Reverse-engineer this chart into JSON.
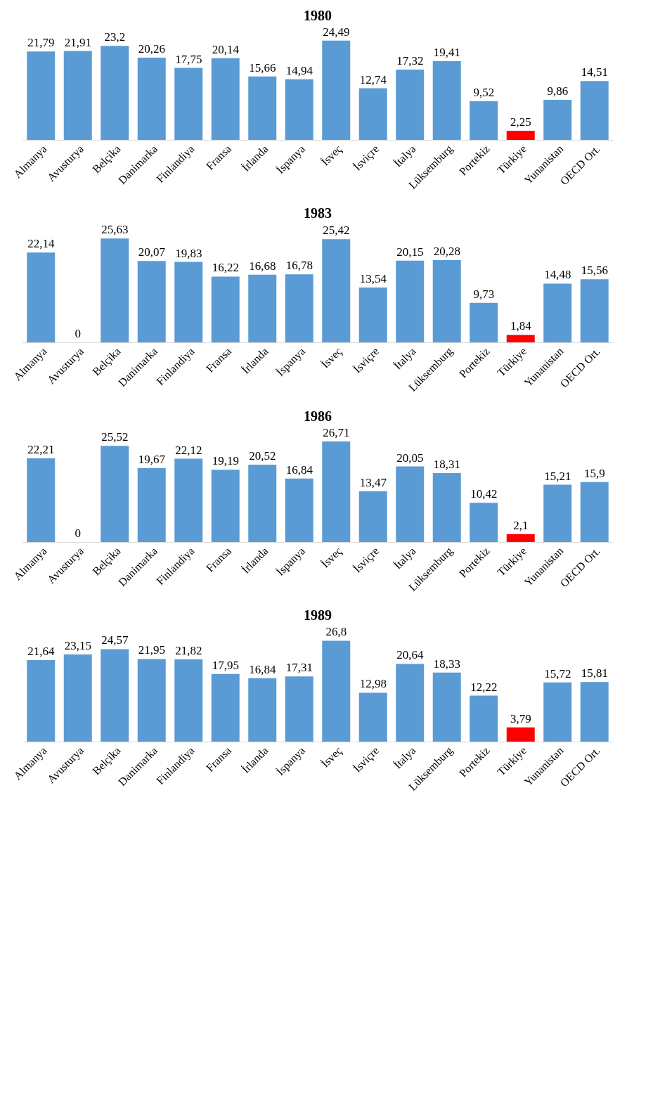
{
  "chart_data": [
    {
      "type": "bar",
      "title": "1980",
      "categories": [
        "Almanya",
        "Avusturya",
        "Belçika",
        "Danimarka",
        "Finlandiya",
        "Fransa",
        "İrlanda",
        "İspanya",
        "İsveç",
        "İsviçre",
        "İtalya",
        "Lüksemburg",
        "Portekiz",
        "Türkiye",
        "Yunanistan",
        "OECD Ort."
      ],
      "values": [
        21.79,
        21.91,
        23.2,
        20.26,
        17.75,
        20.14,
        15.66,
        14.94,
        24.49,
        12.74,
        17.32,
        19.41,
        9.52,
        2.25,
        9.86,
        14.51
      ],
      "value_labels": [
        "21,79",
        "21,91",
        "23,2",
        "20,26",
        "17,75",
        "20,14",
        "15,66",
        "14,94",
        "24,49",
        "12,74",
        "17,32",
        "19,41",
        "9,52",
        "2,25",
        "9,86",
        "14,51"
      ],
      "colors": [
        "#5b9bd5",
        "#5b9bd5",
        "#5b9bd5",
        "#5b9bd5",
        "#5b9bd5",
        "#5b9bd5",
        "#5b9bd5",
        "#5b9bd5",
        "#5b9bd5",
        "#5b9bd5",
        "#5b9bd5",
        "#5b9bd5",
        "#5b9bd5",
        "#ff0000",
        "#5b9bd5",
        "#5b9bd5"
      ],
      "tick_labels": "x"
    },
    {
      "type": "bar",
      "title": "1983",
      "categories": [
        "Almanya",
        "Avusturya",
        "Belçika",
        "Danimarka",
        "Finlandiya",
        "Fransa",
        "İrlanda",
        "İspanya",
        "İsveç",
        "İsviçre",
        "İtalya",
        "Lüksemburg",
        "Portekiz",
        "Türkiye",
        "Yunanistan",
        "OECD Ort."
      ],
      "values": [
        22.14,
        0,
        25.63,
        20.07,
        19.83,
        16.22,
        16.68,
        16.78,
        25.42,
        13.54,
        20.15,
        20.28,
        9.73,
        1.84,
        14.48,
        15.56
      ],
      "value_labels": [
        "22,14",
        "0",
        "25,63",
        "20,07",
        "19,83",
        "16,22",
        "16,68",
        "16,78",
        "25,42",
        "13,54",
        "20,15",
        "20,28",
        "9,73",
        "1,84",
        "14,48",
        "15,56"
      ],
      "colors": [
        "#5b9bd5",
        "#5b9bd5",
        "#5b9bd5",
        "#5b9bd5",
        "#5b9bd5",
        "#5b9bd5",
        "#5b9bd5",
        "#5b9bd5",
        "#5b9bd5",
        "#5b9bd5",
        "#5b9bd5",
        "#5b9bd5",
        "#5b9bd5",
        "#ff0000",
        "#5b9bd5",
        "#5b9bd5"
      ],
      "tick_labels": "x"
    },
    {
      "type": "bar",
      "title": "1986",
      "categories": [
        "Almanya",
        "Avusturya",
        "Belçika",
        "Danimarka",
        "Finlandiya",
        "Fransa",
        "İrlanda",
        "İspanya",
        "İsveç",
        "İsviçre",
        "İtalya",
        "Lüksemburg",
        "Portekiz",
        "Türkiye",
        "Yunanistan",
        "OECD Ort."
      ],
      "values": [
        22.21,
        0,
        25.52,
        19.67,
        22.12,
        19.19,
        20.52,
        16.84,
        26.71,
        13.47,
        20.05,
        18.31,
        10.42,
        2.1,
        15.21,
        15.9
      ],
      "value_labels": [
        "22,21",
        "0",
        "25,52",
        "19,67",
        "22,12",
        "19,19",
        "20,52",
        "16,84",
        "26,71",
        "13,47",
        "20,05",
        "18,31",
        "10,42",
        "2,1",
        "15,21",
        "15,9"
      ],
      "colors": [
        "#5b9bd5",
        "#5b9bd5",
        "#5b9bd5",
        "#5b9bd5",
        "#5b9bd5",
        "#5b9bd5",
        "#5b9bd5",
        "#5b9bd5",
        "#5b9bd5",
        "#5b9bd5",
        "#5b9bd5",
        "#5b9bd5",
        "#5b9bd5",
        "#ff0000",
        "#5b9bd5",
        "#5b9bd5"
      ],
      "tick_labels": "x"
    },
    {
      "type": "bar",
      "title": "1989",
      "categories": [
        "Almanya",
        "Avusturya",
        "Belçika",
        "Danimarka",
        "Finlandiya",
        "Fransa",
        "İrlanda",
        "İspanya",
        "İsveç",
        "İsviçre",
        "İtalya",
        "Lüksemburg",
        "Portekiz",
        "Türkiye",
        "Yunanistan",
        "OECD Ort."
      ],
      "values": [
        21.64,
        23.15,
        24.57,
        21.95,
        21.82,
        17.95,
        16.84,
        17.31,
        26.8,
        12.98,
        20.64,
        18.33,
        12.22,
        3.79,
        15.72,
        15.81
      ],
      "value_labels": [
        "21,64",
        "23,15",
        "24,57",
        "21,95",
        "21,82",
        "17,95",
        "16,84",
        "17,31",
        "26,8",
        "12,98",
        "20,64",
        "18,33",
        "12,22",
        "3,79",
        "15,72",
        "15,81"
      ],
      "colors": [
        "#5b9bd5",
        "#5b9bd5",
        "#5b9bd5",
        "#5b9bd5",
        "#5b9bd5",
        "#5b9bd5",
        "#5b9bd5",
        "#5b9bd5",
        "#5b9bd5",
        "#5b9bd5",
        "#5b9bd5",
        "#5b9bd5",
        "#5b9bd5",
        "#ff0000",
        "#5b9bd5",
        "#5b9bd5"
      ],
      "tick_labels": "x"
    }
  ]
}
